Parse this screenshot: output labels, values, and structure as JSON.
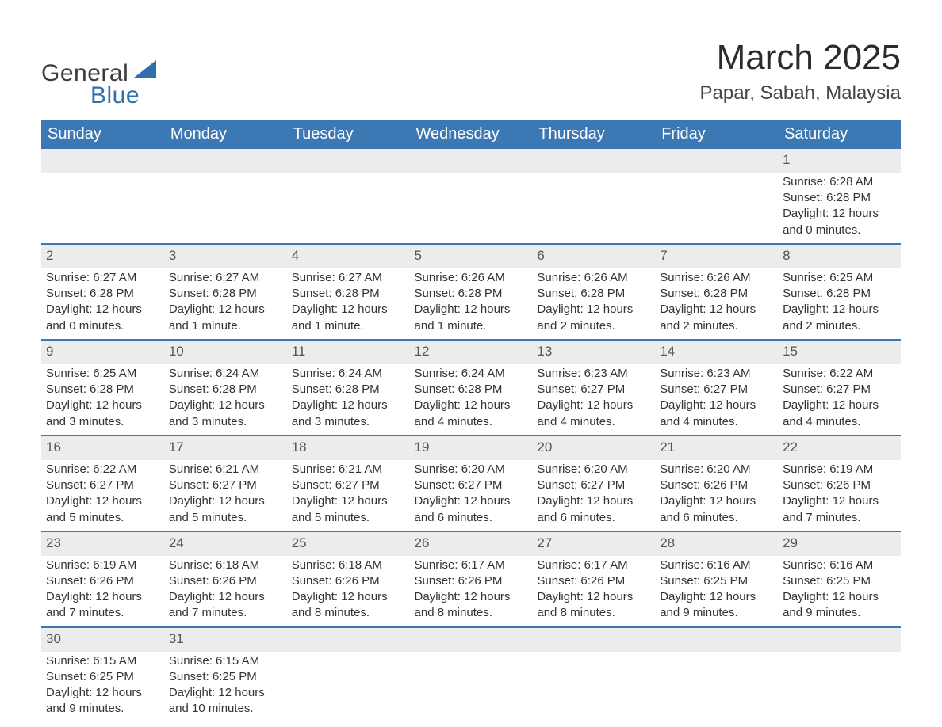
{
  "brand": {
    "word1": "General",
    "word2": "Blue",
    "logo_color": "#2f6fb0",
    "text_color": "#3c3c3c"
  },
  "title": "March 2025",
  "location": "Papar, Sabah, Malaysia",
  "colors": {
    "header_bg": "#3c78b4",
    "header_text": "#ffffff",
    "daynum_bg": "#ececec",
    "row_divider": "#3c78b4",
    "body_text": "#333333"
  },
  "weekdays": [
    "Sunday",
    "Monday",
    "Tuesday",
    "Wednesday",
    "Thursday",
    "Friday",
    "Saturday"
  ],
  "weeks": [
    {
      "nums": [
        "",
        "",
        "",
        "",
        "",
        "",
        "1"
      ],
      "details": [
        {},
        {},
        {},
        {},
        {},
        {},
        {
          "sunrise": "Sunrise: 6:28 AM",
          "sunset": "Sunset: 6:28 PM",
          "daylight1": "Daylight: 12 hours",
          "daylight2": "and 0 minutes."
        }
      ]
    },
    {
      "nums": [
        "2",
        "3",
        "4",
        "5",
        "6",
        "7",
        "8"
      ],
      "details": [
        {
          "sunrise": "Sunrise: 6:27 AM",
          "sunset": "Sunset: 6:28 PM",
          "daylight1": "Daylight: 12 hours",
          "daylight2": "and 0 minutes."
        },
        {
          "sunrise": "Sunrise: 6:27 AM",
          "sunset": "Sunset: 6:28 PM",
          "daylight1": "Daylight: 12 hours",
          "daylight2": "and 1 minute."
        },
        {
          "sunrise": "Sunrise: 6:27 AM",
          "sunset": "Sunset: 6:28 PM",
          "daylight1": "Daylight: 12 hours",
          "daylight2": "and 1 minute."
        },
        {
          "sunrise": "Sunrise: 6:26 AM",
          "sunset": "Sunset: 6:28 PM",
          "daylight1": "Daylight: 12 hours",
          "daylight2": "and 1 minute."
        },
        {
          "sunrise": "Sunrise: 6:26 AM",
          "sunset": "Sunset: 6:28 PM",
          "daylight1": "Daylight: 12 hours",
          "daylight2": "and 2 minutes."
        },
        {
          "sunrise": "Sunrise: 6:26 AM",
          "sunset": "Sunset: 6:28 PM",
          "daylight1": "Daylight: 12 hours",
          "daylight2": "and 2 minutes."
        },
        {
          "sunrise": "Sunrise: 6:25 AM",
          "sunset": "Sunset: 6:28 PM",
          "daylight1": "Daylight: 12 hours",
          "daylight2": "and 2 minutes."
        }
      ]
    },
    {
      "nums": [
        "9",
        "10",
        "11",
        "12",
        "13",
        "14",
        "15"
      ],
      "details": [
        {
          "sunrise": "Sunrise: 6:25 AM",
          "sunset": "Sunset: 6:28 PM",
          "daylight1": "Daylight: 12 hours",
          "daylight2": "and 3 minutes."
        },
        {
          "sunrise": "Sunrise: 6:24 AM",
          "sunset": "Sunset: 6:28 PM",
          "daylight1": "Daylight: 12 hours",
          "daylight2": "and 3 minutes."
        },
        {
          "sunrise": "Sunrise: 6:24 AM",
          "sunset": "Sunset: 6:28 PM",
          "daylight1": "Daylight: 12 hours",
          "daylight2": "and 3 minutes."
        },
        {
          "sunrise": "Sunrise: 6:24 AM",
          "sunset": "Sunset: 6:28 PM",
          "daylight1": "Daylight: 12 hours",
          "daylight2": "and 4 minutes."
        },
        {
          "sunrise": "Sunrise: 6:23 AM",
          "sunset": "Sunset: 6:27 PM",
          "daylight1": "Daylight: 12 hours",
          "daylight2": "and 4 minutes."
        },
        {
          "sunrise": "Sunrise: 6:23 AM",
          "sunset": "Sunset: 6:27 PM",
          "daylight1": "Daylight: 12 hours",
          "daylight2": "and 4 minutes."
        },
        {
          "sunrise": "Sunrise: 6:22 AM",
          "sunset": "Sunset: 6:27 PM",
          "daylight1": "Daylight: 12 hours",
          "daylight2": "and 4 minutes."
        }
      ]
    },
    {
      "nums": [
        "16",
        "17",
        "18",
        "19",
        "20",
        "21",
        "22"
      ],
      "details": [
        {
          "sunrise": "Sunrise: 6:22 AM",
          "sunset": "Sunset: 6:27 PM",
          "daylight1": "Daylight: 12 hours",
          "daylight2": "and 5 minutes."
        },
        {
          "sunrise": "Sunrise: 6:21 AM",
          "sunset": "Sunset: 6:27 PM",
          "daylight1": "Daylight: 12 hours",
          "daylight2": "and 5 minutes."
        },
        {
          "sunrise": "Sunrise: 6:21 AM",
          "sunset": "Sunset: 6:27 PM",
          "daylight1": "Daylight: 12 hours",
          "daylight2": "and 5 minutes."
        },
        {
          "sunrise": "Sunrise: 6:20 AM",
          "sunset": "Sunset: 6:27 PM",
          "daylight1": "Daylight: 12 hours",
          "daylight2": "and 6 minutes."
        },
        {
          "sunrise": "Sunrise: 6:20 AM",
          "sunset": "Sunset: 6:27 PM",
          "daylight1": "Daylight: 12 hours",
          "daylight2": "and 6 minutes."
        },
        {
          "sunrise": "Sunrise: 6:20 AM",
          "sunset": "Sunset: 6:26 PM",
          "daylight1": "Daylight: 12 hours",
          "daylight2": "and 6 minutes."
        },
        {
          "sunrise": "Sunrise: 6:19 AM",
          "sunset": "Sunset: 6:26 PM",
          "daylight1": "Daylight: 12 hours",
          "daylight2": "and 7 minutes."
        }
      ]
    },
    {
      "nums": [
        "23",
        "24",
        "25",
        "26",
        "27",
        "28",
        "29"
      ],
      "details": [
        {
          "sunrise": "Sunrise: 6:19 AM",
          "sunset": "Sunset: 6:26 PM",
          "daylight1": "Daylight: 12 hours",
          "daylight2": "and 7 minutes."
        },
        {
          "sunrise": "Sunrise: 6:18 AM",
          "sunset": "Sunset: 6:26 PM",
          "daylight1": "Daylight: 12 hours",
          "daylight2": "and 7 minutes."
        },
        {
          "sunrise": "Sunrise: 6:18 AM",
          "sunset": "Sunset: 6:26 PM",
          "daylight1": "Daylight: 12 hours",
          "daylight2": "and 8 minutes."
        },
        {
          "sunrise": "Sunrise: 6:17 AM",
          "sunset": "Sunset: 6:26 PM",
          "daylight1": "Daylight: 12 hours",
          "daylight2": "and 8 minutes."
        },
        {
          "sunrise": "Sunrise: 6:17 AM",
          "sunset": "Sunset: 6:26 PM",
          "daylight1": "Daylight: 12 hours",
          "daylight2": "and 8 minutes."
        },
        {
          "sunrise": "Sunrise: 6:16 AM",
          "sunset": "Sunset: 6:25 PM",
          "daylight1": "Daylight: 12 hours",
          "daylight2": "and 9 minutes."
        },
        {
          "sunrise": "Sunrise: 6:16 AM",
          "sunset": "Sunset: 6:25 PM",
          "daylight1": "Daylight: 12 hours",
          "daylight2": "and 9 minutes."
        }
      ]
    },
    {
      "nums": [
        "30",
        "31",
        "",
        "",
        "",
        "",
        ""
      ],
      "details": [
        {
          "sunrise": "Sunrise: 6:15 AM",
          "sunset": "Sunset: 6:25 PM",
          "daylight1": "Daylight: 12 hours",
          "daylight2": "and 9 minutes."
        },
        {
          "sunrise": "Sunrise: 6:15 AM",
          "sunset": "Sunset: 6:25 PM",
          "daylight1": "Daylight: 12 hours",
          "daylight2": "and 10 minutes."
        },
        {},
        {},
        {},
        {},
        {}
      ]
    }
  ]
}
